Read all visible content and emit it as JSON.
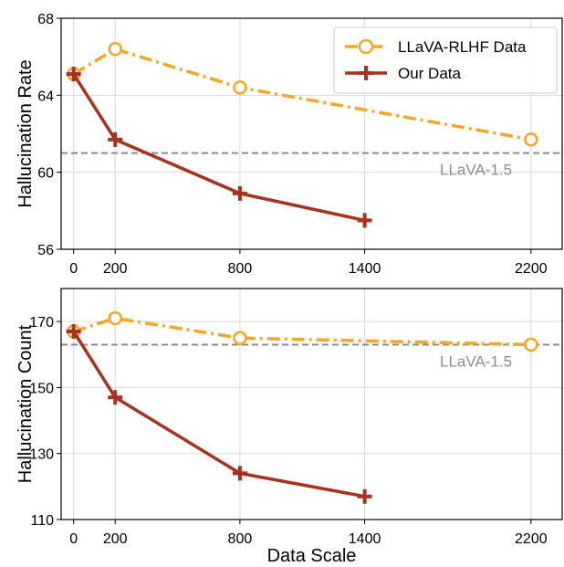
{
  "colors": {
    "rlhf": "#f5a623",
    "ours": "#a8321e",
    "reference": "#8c8c8c",
    "grid": "#d9d9d9"
  },
  "legend": {
    "rlhf_label": "LLaVA-RLHF Data",
    "ours_label": "Our Data"
  },
  "chart_data": [
    {
      "type": "line",
      "ylabel": "Hallucination Rate",
      "xlabel": "",
      "x_ticks": [
        0,
        200,
        800,
        1400,
        2200
      ],
      "y_ticks": [
        56,
        60,
        64,
        68
      ],
      "ylim": [
        56,
        68
      ],
      "grid": true,
      "legend_position": "top-right",
      "series": [
        {
          "name": "LLaVA-RLHF Data",
          "style": "dash-dot",
          "marker": "circle",
          "x": [
            0,
            200,
            800,
            2200
          ],
          "y": [
            65.1,
            66.4,
            64.4,
            61.7
          ]
        },
        {
          "name": "Our Data",
          "style": "solid",
          "marker": "plus",
          "x": [
            0,
            200,
            800,
            1400
          ],
          "y": [
            65.1,
            61.7,
            58.9,
            57.5
          ]
        }
      ],
      "reference": {
        "label": "LLaVA-1.5",
        "y": 61.0
      }
    },
    {
      "type": "line",
      "ylabel": "Hallucination Count",
      "xlabel": "Data Scale",
      "x_ticks": [
        0,
        200,
        800,
        1400,
        2200
      ],
      "y_ticks": [
        110,
        130,
        150,
        170
      ],
      "ylim": [
        110,
        180
      ],
      "grid": true,
      "series": [
        {
          "name": "LLaVA-RLHF Data",
          "style": "dash-dot",
          "marker": "circle",
          "x": [
            0,
            200,
            800,
            2200
          ],
          "y": [
            167,
            171,
            165,
            163
          ]
        },
        {
          "name": "Our Data",
          "style": "solid",
          "marker": "plus",
          "x": [
            0,
            200,
            800,
            1400
          ],
          "y": [
            167,
            147,
            124,
            117
          ]
        }
      ],
      "reference": {
        "label": "LLaVA-1.5",
        "y": 163
      }
    }
  ]
}
